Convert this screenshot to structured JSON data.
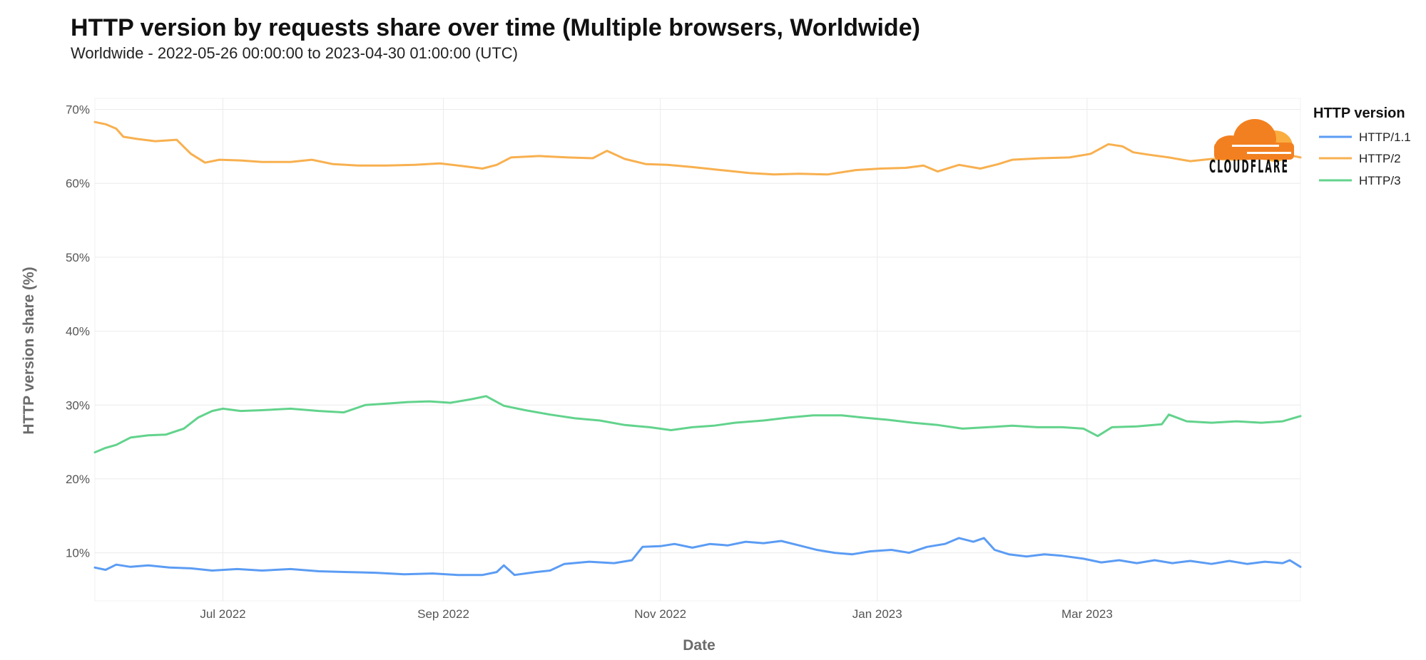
{
  "title": "HTTP version by requests share over time (Multiple browsers, Worldwide)",
  "subtitle": "Worldwide - 2022-05-26 00:00:00 to 2023-04-30 01:00:00 (UTC)",
  "logo_text": "CLOUDFLARE",
  "colors": {
    "http11": "#5b9cf4",
    "http2": "#f8b04f",
    "http3": "#62d38c",
    "logo_orange_dark": "#f38020",
    "logo_orange_light": "#faae40",
    "grid": "#ebebeb"
  },
  "chart_data": {
    "type": "line",
    "xlabel": "Date",
    "ylabel": "HTTP version share (%)",
    "xlim": [
      "2022-05-26",
      "2023-04-30"
    ],
    "ylim": [
      3.5,
      71.5
    ],
    "grid": true,
    "legend": {
      "title": "HTTP version",
      "placement": "right"
    },
    "x_ticks": [
      {
        "date": "2022-07-01",
        "label": "Jul 2022"
      },
      {
        "date": "2022-09-01",
        "label": "Sep 2022"
      },
      {
        "date": "2022-11-01",
        "label": "Nov 2022"
      },
      {
        "date": "2023-01-01",
        "label": "Jan 2023"
      },
      {
        "date": "2023-03-01",
        "label": "Mar 2023"
      }
    ],
    "y_ticks": [
      {
        "value": 10,
        "label": "10%"
      },
      {
        "value": 20,
        "label": "20%"
      },
      {
        "value": 30,
        "label": "30%"
      },
      {
        "value": 40,
        "label": "40%"
      },
      {
        "value": 50,
        "label": "50%"
      },
      {
        "value": 60,
        "label": "60%"
      },
      {
        "value": 70,
        "label": "70%"
      }
    ],
    "series": [
      {
        "name": "HTTP/1.1",
        "color": "#5b9cf4",
        "points": [
          [
            "2022-05-26",
            8.0
          ],
          [
            "2022-05-29",
            7.7
          ],
          [
            "2022-06-01",
            8.4
          ],
          [
            "2022-06-05",
            8.1
          ],
          [
            "2022-06-10",
            8.3
          ],
          [
            "2022-06-16",
            8.0
          ],
          [
            "2022-06-22",
            7.9
          ],
          [
            "2022-06-28",
            7.6
          ],
          [
            "2022-07-05",
            7.8
          ],
          [
            "2022-07-12",
            7.6
          ],
          [
            "2022-07-20",
            7.8
          ],
          [
            "2022-07-28",
            7.5
          ],
          [
            "2022-08-05",
            7.4
          ],
          [
            "2022-08-13",
            7.3
          ],
          [
            "2022-08-21",
            7.1
          ],
          [
            "2022-08-29",
            7.2
          ],
          [
            "2022-09-05",
            7.0
          ],
          [
            "2022-09-12",
            7.0
          ],
          [
            "2022-09-16",
            7.4
          ],
          [
            "2022-09-18",
            8.3
          ],
          [
            "2022-09-21",
            7.0
          ],
          [
            "2022-09-27",
            7.4
          ],
          [
            "2022-10-01",
            7.6
          ],
          [
            "2022-10-05",
            8.5
          ],
          [
            "2022-10-12",
            8.8
          ],
          [
            "2022-10-19",
            8.6
          ],
          [
            "2022-10-24",
            9.0
          ],
          [
            "2022-10-27",
            10.8
          ],
          [
            "2022-11-01",
            10.9
          ],
          [
            "2022-11-05",
            11.2
          ],
          [
            "2022-11-10",
            10.7
          ],
          [
            "2022-11-15",
            11.2
          ],
          [
            "2022-11-20",
            11.0
          ],
          [
            "2022-11-25",
            11.5
          ],
          [
            "2022-11-30",
            11.3
          ],
          [
            "2022-12-05",
            11.6
          ],
          [
            "2022-12-10",
            11.0
          ],
          [
            "2022-12-15",
            10.4
          ],
          [
            "2022-12-20",
            10.0
          ],
          [
            "2022-12-25",
            9.8
          ],
          [
            "2022-12-30",
            10.2
          ],
          [
            "2023-01-05",
            10.4
          ],
          [
            "2023-01-10",
            10.0
          ],
          [
            "2023-01-15",
            10.8
          ],
          [
            "2023-01-20",
            11.2
          ],
          [
            "2023-01-24",
            12.0
          ],
          [
            "2023-01-28",
            11.5
          ],
          [
            "2023-01-31",
            12.0
          ],
          [
            "2023-02-03",
            10.4
          ],
          [
            "2023-02-07",
            9.8
          ],
          [
            "2023-02-12",
            9.5
          ],
          [
            "2023-02-17",
            9.8
          ],
          [
            "2023-02-22",
            9.6
          ],
          [
            "2023-02-28",
            9.2
          ],
          [
            "2023-03-05",
            8.7
          ],
          [
            "2023-03-10",
            9.0
          ],
          [
            "2023-03-15",
            8.6
          ],
          [
            "2023-03-20",
            9.0
          ],
          [
            "2023-03-25",
            8.6
          ],
          [
            "2023-03-30",
            8.9
          ],
          [
            "2023-04-05",
            8.5
          ],
          [
            "2023-04-10",
            8.9
          ],
          [
            "2023-04-15",
            8.5
          ],
          [
            "2023-04-20",
            8.8
          ],
          [
            "2023-04-25",
            8.6
          ],
          [
            "2023-04-27",
            9.0
          ],
          [
            "2023-04-30",
            8.1
          ]
        ]
      },
      {
        "name": "HTTP/2",
        "color": "#f8b04f",
        "points": [
          [
            "2022-05-26",
            68.3
          ],
          [
            "2022-05-29",
            68.0
          ],
          [
            "2022-06-01",
            67.4
          ],
          [
            "2022-06-03",
            66.3
          ],
          [
            "2022-06-07",
            66.0
          ],
          [
            "2022-06-12",
            65.7
          ],
          [
            "2022-06-18",
            65.9
          ],
          [
            "2022-06-22",
            64.0
          ],
          [
            "2022-06-26",
            62.8
          ],
          [
            "2022-06-30",
            63.2
          ],
          [
            "2022-07-06",
            63.1
          ],
          [
            "2022-07-12",
            62.9
          ],
          [
            "2022-07-20",
            62.9
          ],
          [
            "2022-07-26",
            63.2
          ],
          [
            "2022-08-01",
            62.6
          ],
          [
            "2022-08-08",
            62.4
          ],
          [
            "2022-08-16",
            62.4
          ],
          [
            "2022-08-24",
            62.5
          ],
          [
            "2022-08-31",
            62.7
          ],
          [
            "2022-09-07",
            62.3
          ],
          [
            "2022-09-12",
            62.0
          ],
          [
            "2022-09-16",
            62.5
          ],
          [
            "2022-09-20",
            63.5
          ],
          [
            "2022-09-28",
            63.7
          ],
          [
            "2022-10-06",
            63.5
          ],
          [
            "2022-10-13",
            63.4
          ],
          [
            "2022-10-17",
            64.4
          ],
          [
            "2022-10-22",
            63.3
          ],
          [
            "2022-10-28",
            62.6
          ],
          [
            "2022-11-03",
            62.5
          ],
          [
            "2022-11-10",
            62.2
          ],
          [
            "2022-11-18",
            61.8
          ],
          [
            "2022-11-26",
            61.4
          ],
          [
            "2022-12-03",
            61.2
          ],
          [
            "2022-12-10",
            61.3
          ],
          [
            "2022-12-18",
            61.2
          ],
          [
            "2022-12-26",
            61.8
          ],
          [
            "2023-01-02",
            62.0
          ],
          [
            "2023-01-09",
            62.1
          ],
          [
            "2023-01-14",
            62.4
          ],
          [
            "2023-01-18",
            61.6
          ],
          [
            "2023-01-24",
            62.5
          ],
          [
            "2023-01-30",
            62.0
          ],
          [
            "2023-02-04",
            62.6
          ],
          [
            "2023-02-08",
            63.2
          ],
          [
            "2023-02-16",
            63.4
          ],
          [
            "2023-02-24",
            63.5
          ],
          [
            "2023-03-02",
            64.0
          ],
          [
            "2023-03-07",
            65.3
          ],
          [
            "2023-03-11",
            65.0
          ],
          [
            "2023-03-14",
            64.2
          ],
          [
            "2023-03-18",
            63.9
          ],
          [
            "2023-03-24",
            63.5
          ],
          [
            "2023-03-30",
            63.0
          ],
          [
            "2023-04-05",
            63.3
          ],
          [
            "2023-04-12",
            63.2
          ],
          [
            "2023-04-18",
            63.4
          ],
          [
            "2023-04-24",
            63.1
          ],
          [
            "2023-04-27",
            63.8
          ],
          [
            "2023-04-30",
            63.5
          ]
        ]
      },
      {
        "name": "HTTP/3",
        "color": "#62d38c",
        "points": [
          [
            "2022-05-26",
            23.6
          ],
          [
            "2022-05-29",
            24.2
          ],
          [
            "2022-06-01",
            24.6
          ],
          [
            "2022-06-05",
            25.6
          ],
          [
            "2022-06-10",
            25.9
          ],
          [
            "2022-06-15",
            26.0
          ],
          [
            "2022-06-20",
            26.8
          ],
          [
            "2022-06-24",
            28.3
          ],
          [
            "2022-06-28",
            29.2
          ],
          [
            "2022-07-01",
            29.5
          ],
          [
            "2022-07-06",
            29.2
          ],
          [
            "2022-07-12",
            29.3
          ],
          [
            "2022-07-20",
            29.5
          ],
          [
            "2022-07-28",
            29.2
          ],
          [
            "2022-08-04",
            29.0
          ],
          [
            "2022-08-10",
            30.0
          ],
          [
            "2022-08-16",
            30.2
          ],
          [
            "2022-08-22",
            30.4
          ],
          [
            "2022-08-28",
            30.5
          ],
          [
            "2022-09-03",
            30.3
          ],
          [
            "2022-09-09",
            30.8
          ],
          [
            "2022-09-13",
            31.2
          ],
          [
            "2022-09-18",
            29.9
          ],
          [
            "2022-09-24",
            29.3
          ],
          [
            "2022-10-01",
            28.7
          ],
          [
            "2022-10-08",
            28.2
          ],
          [
            "2022-10-15",
            27.9
          ],
          [
            "2022-10-22",
            27.3
          ],
          [
            "2022-10-29",
            27.0
          ],
          [
            "2022-11-04",
            26.6
          ],
          [
            "2022-11-10",
            27.0
          ],
          [
            "2022-11-16",
            27.2
          ],
          [
            "2022-11-22",
            27.6
          ],
          [
            "2022-11-30",
            27.9
          ],
          [
            "2022-12-07",
            28.3
          ],
          [
            "2022-12-14",
            28.6
          ],
          [
            "2022-12-22",
            28.6
          ],
          [
            "2022-12-28",
            28.3
          ],
          [
            "2023-01-04",
            28.0
          ],
          [
            "2023-01-11",
            27.6
          ],
          [
            "2023-01-18",
            27.3
          ],
          [
            "2023-01-25",
            26.8
          ],
          [
            "2023-02-01",
            27.0
          ],
          [
            "2023-02-08",
            27.2
          ],
          [
            "2023-02-15",
            27.0
          ],
          [
            "2023-02-22",
            27.0
          ],
          [
            "2023-02-28",
            26.8
          ],
          [
            "2023-03-04",
            25.8
          ],
          [
            "2023-03-08",
            27.0
          ],
          [
            "2023-03-15",
            27.1
          ],
          [
            "2023-03-22",
            27.4
          ],
          [
            "2023-03-24",
            28.7
          ],
          [
            "2023-03-29",
            27.8
          ],
          [
            "2023-04-05",
            27.6
          ],
          [
            "2023-04-12",
            27.8
          ],
          [
            "2023-04-19",
            27.6
          ],
          [
            "2023-04-25",
            27.8
          ],
          [
            "2023-04-30",
            28.5
          ]
        ]
      }
    ]
  }
}
